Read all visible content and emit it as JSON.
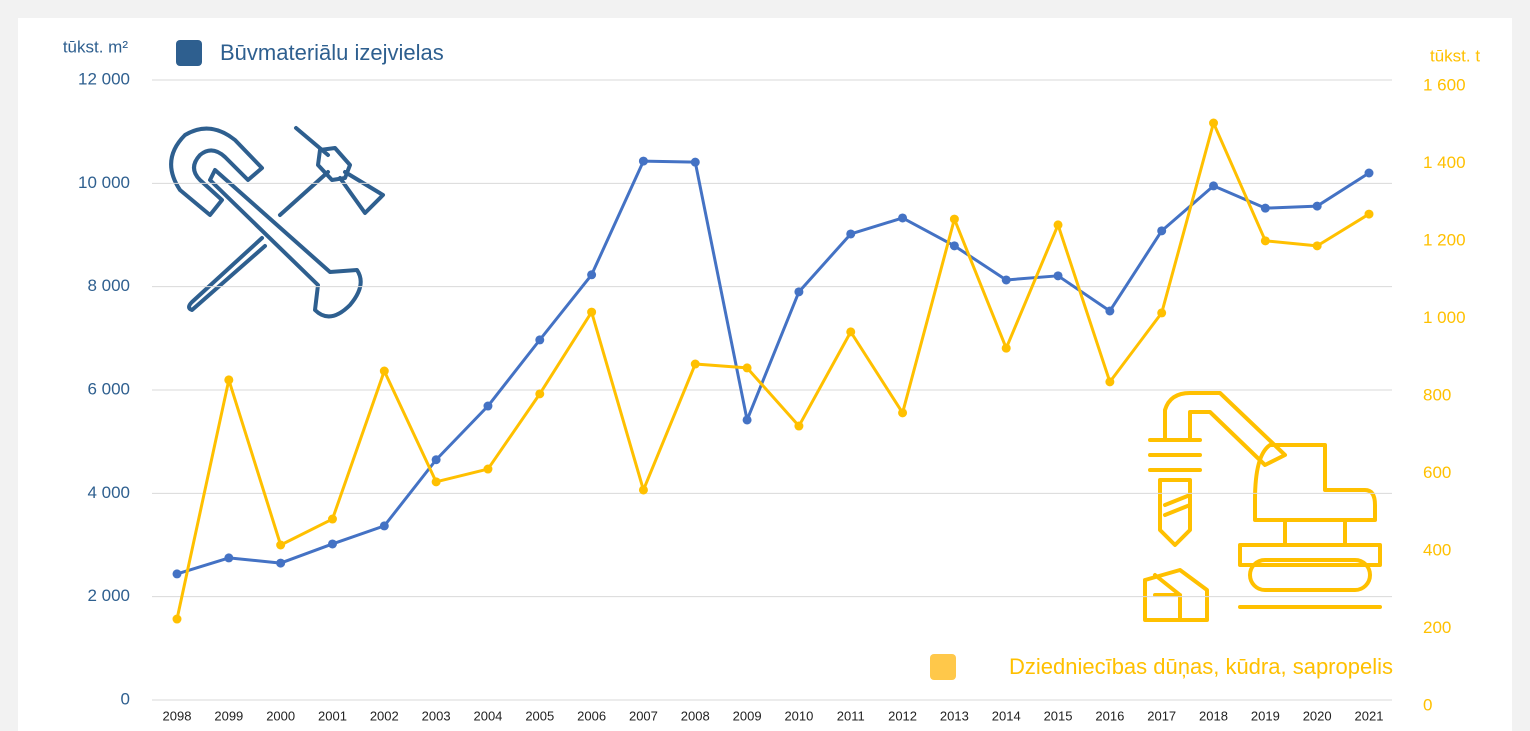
{
  "chart_data": {
    "type": "line",
    "y_label": "tūkst. m²",
    "y2_label": "tūkst. t",
    "categories": [
      "2098",
      "2099",
      "2000",
      "2001",
      "2002",
      "2003",
      "2004",
      "2005",
      "2006",
      "2007",
      "2008",
      "2009",
      "2010",
      "2011",
      "2012",
      "2013",
      "2014",
      "2015",
      "2016",
      "2017",
      "2018",
      "2019",
      "2020",
      "2021"
    ],
    "series": [
      {
        "name": "Būvmateriālu izejvielas",
        "color": "#4472c4",
        "axis": "y",
        "values": [
          2440,
          2750,
          2650,
          3020,
          3370,
          4650,
          5690,
          6970,
          8230,
          10430,
          10410,
          5420,
          7900,
          9020,
          9330,
          8790,
          8130,
          8210,
          7530,
          9080,
          9950,
          9520,
          9560,
          10200
        ]
      },
      {
        "name": "Dziedniecības dūņas, kūdra, sapropelis",
        "color": "#ffc000",
        "axis": "y2",
        "values": [
          209,
          826,
          400,
          467,
          849,
          563,
          596,
          790,
          1001,
          542,
          867,
          857,
          707,
          950,
          741,
          1241,
          908,
          1226,
          821,
          999,
          1489,
          1185,
          1172,
          1254
        ]
      }
    ],
    "ylim": [
      0,
      12000
    ],
    "yticks": [
      0,
      {
        "value": 2000,
        "label": "2 000"
      },
      {
        "value": 4000,
        "label": "4 000"
      },
      {
        "value": 6000,
        "label": "6 000"
      },
      {
        "value": 8000,
        "label": "8 000"
      },
      {
        "value": 10000,
        "label": "10 000"
      },
      {
        "value": 12000,
        "label": "12 000"
      }
    ],
    "y2lim": [
      0,
      1600
    ],
    "y2ticks": [
      0,
      200,
      400,
      600,
      800,
      {
        "value": 1000,
        "label": "1 000"
      },
      {
        "value": 1200,
        "label": "1 200"
      },
      {
        "value": 1400,
        "label": "1 400"
      },
      {
        "value": 1600,
        "label": "1 600"
      }
    ],
    "grid": true
  }
}
